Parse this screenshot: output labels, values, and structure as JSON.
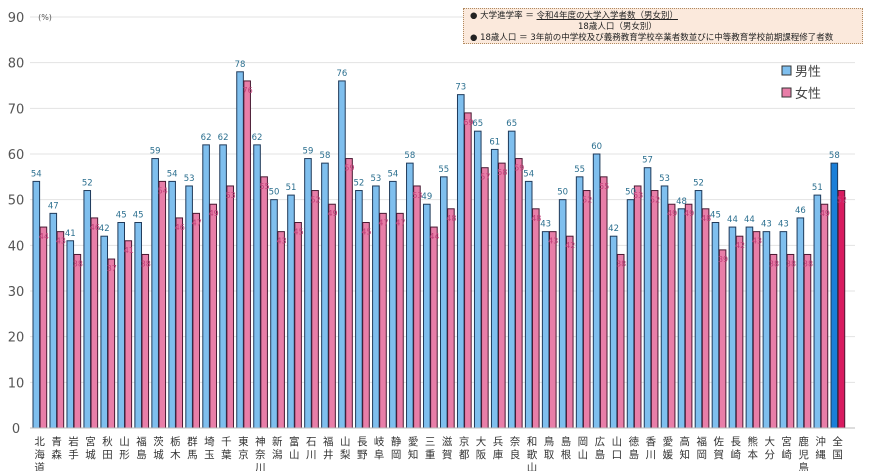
{
  "note": {
    "line1_label": "● 大学進学率 ＝",
    "line1_numerator": "令和4年度の大学入学者数（男女別）",
    "line1_denominator": "18歳人口（男女別）",
    "line2": "● 18歳人口 ＝ 3年前の中学校及び義務教育学校卒業者数並びに中等教育学校前期課程修了者数"
  },
  "chart_data": {
    "type": "bar",
    "ylabel": "(%)",
    "ylim": [
      0,
      90
    ],
    "yticks": [
      0,
      10,
      20,
      30,
      40,
      50,
      60,
      70,
      80,
      90
    ],
    "grid": true,
    "legend_position": "top-right",
    "categories": [
      "北海道",
      "青森",
      "岩手",
      "宮城",
      "秋田",
      "山形",
      "福島",
      "茨城",
      "栃木",
      "群馬",
      "埼玉",
      "千葉",
      "東京",
      "神奈川",
      "新潟",
      "富山",
      "石川",
      "福井",
      "山梨",
      "長野",
      "岐阜",
      "静岡",
      "愛知",
      "三重",
      "滋賀",
      "京都",
      "大阪",
      "兵庫",
      "奈良",
      "和歌山",
      "鳥取",
      "島根",
      "岡山",
      "広島",
      "山口",
      "徳島",
      "香川",
      "愛媛",
      "高知",
      "福岡",
      "佐賀",
      "長崎",
      "熊本",
      "大分",
      "宮崎",
      "鹿児島",
      "沖縄",
      "全国"
    ],
    "series": [
      {
        "name": "男性",
        "color": "#7fbfee",
        "highlight_color": "#1a7fd8",
        "values": [
          54,
          47,
          41,
          52,
          42,
          45,
          45,
          59,
          54,
          53,
          62,
          62,
          78,
          62,
          50,
          51,
          59,
          58,
          76,
          52,
          53,
          54,
          58,
          49,
          55,
          73,
          65,
          61,
          65,
          54,
          43,
          50,
          55,
          60,
          42,
          50,
          57,
          53,
          48,
          52,
          45,
          44,
          44,
          43,
          43,
          46,
          51,
          58
        ]
      },
      {
        "name": "女性",
        "color": "#e87ea8",
        "highlight_color": "#d81b60",
        "values": [
          44,
          43,
          38,
          46,
          37,
          41,
          38,
          54,
          46,
          47,
          49,
          53,
          76,
          55,
          43,
          45,
          52,
          49,
          59,
          45,
          47,
          47,
          53,
          44,
          48,
          69,
          57,
          58,
          59,
          48,
          43,
          42,
          52,
          55,
          38,
          53,
          52,
          49,
          49,
          48,
          39,
          42,
          43,
          38,
          38,
          38,
          49,
          52
        ]
      }
    ],
    "label_colors": {
      "male": "#2b6f8f",
      "female": "#c2407a"
    }
  }
}
